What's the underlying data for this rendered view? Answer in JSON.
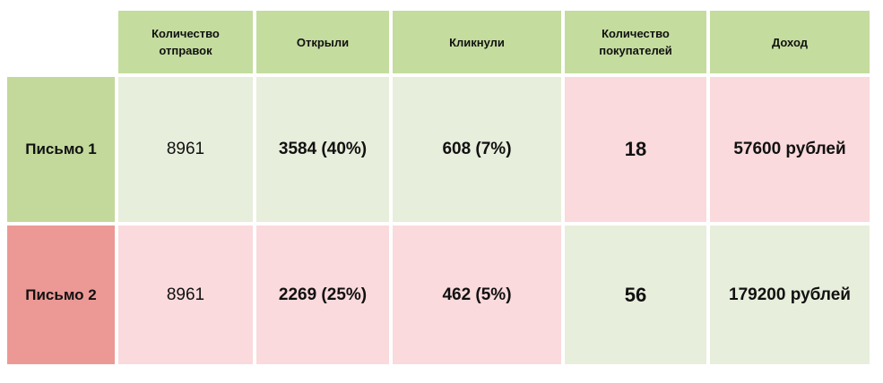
{
  "table": {
    "header": [
      "Количество отправок",
      "Открыли",
      "Кликнули",
      "Количество покупателей",
      "Доход"
    ],
    "rows": [
      {
        "label": "Письмо 1",
        "cells": [
          "8961",
          "3584 (40%)",
          "608 (7%)",
          "18",
          "57600 рублей"
        ]
      },
      {
        "label": "Письмо 2",
        "cells": [
          "8961",
          "2269 (25%)",
          "462 (5%)",
          "56",
          "179200 рублей"
        ]
      }
    ]
  }
}
